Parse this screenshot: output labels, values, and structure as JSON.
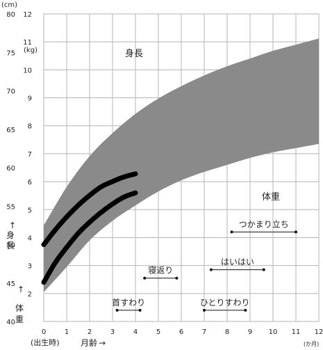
{
  "chart_data": {
    "type": "area",
    "x_axis": {
      "label": "月齢",
      "arrow": "→",
      "ticks": [
        0,
        1,
        2,
        3,
        4,
        5,
        6,
        7,
        8,
        9,
        10,
        11,
        12
      ],
      "range": [
        0,
        12
      ],
      "unit": "(か月)",
      "origin_note": "(出生時)"
    },
    "height_axis": {
      "unit": "(cm)",
      "range": [
        40,
        80
      ],
      "ticks": [
        40,
        45,
        50,
        55,
        60,
        65,
        70,
        75,
        80
      ],
      "label": [
        "身",
        "長"
      ],
      "arrow": "↑"
    },
    "weight_axis": {
      "unit": "(kg)",
      "range": [
        1,
        12
      ],
      "ticks": [
        2,
        3,
        4,
        5,
        6,
        7,
        8,
        9,
        10,
        11,
        12
      ],
      "label": [
        "体",
        "重"
      ],
      "arrow": "↑"
    },
    "grid": true,
    "bands": [
      {
        "name": "身長",
        "axis": "height",
        "x": [
          0,
          1,
          2,
          3,
          4,
          5,
          6,
          7,
          8,
          9,
          10,
          11,
          12
        ],
        "lower": [
          45.5,
          51.0,
          55.0,
          58.0,
          60.5,
          62.5,
          64.0,
          65.5,
          66.7,
          67.8,
          68.8,
          69.8,
          70.6
        ],
        "upper": [
          52.5,
          57.5,
          61.5,
          64.5,
          67.0,
          69.0,
          70.6,
          72.0,
          73.2,
          74.2,
          75.2,
          76.0,
          76.8
        ]
      },
      {
        "name": "体重",
        "axis": "weight",
        "x": [
          0,
          1,
          2,
          3,
          4,
          5,
          6,
          7,
          8,
          9,
          10,
          11,
          12
        ],
        "lower": [
          2.05,
          2.95,
          3.9,
          4.6,
          5.15,
          5.65,
          6.05,
          6.35,
          6.6,
          6.85,
          7.05,
          7.2,
          7.35
        ],
        "upper": [
          3.4,
          4.9,
          6.0,
          6.8,
          7.45,
          7.95,
          8.35,
          8.75,
          9.1,
          9.4,
          9.7,
          9.95,
          10.15
        ]
      }
    ],
    "series": [
      {
        "axis": "height",
        "x": [
          0,
          0.5,
          1,
          1.5,
          2,
          2.5,
          3,
          3.5,
          4
        ],
        "values": [
          50.0,
          51.9,
          53.6,
          55.1,
          56.4,
          57.5,
          58.2,
          58.8,
          59.2
        ]
      },
      {
        "axis": "weight",
        "x": [
          0,
          0.5,
          1,
          1.5,
          2,
          2.5,
          3,
          3.5,
          4
        ],
        "values": [
          2.4,
          3.1,
          3.65,
          4.15,
          4.55,
          4.9,
          5.2,
          5.45,
          5.6
        ]
      }
    ],
    "milestones": [
      {
        "label": "首すわり",
        "start": 3.2,
        "end": 4.2,
        "level": 1.4
      },
      {
        "label": "寝返り",
        "start": 4.4,
        "end": 5.8,
        "level": 2.55
      },
      {
        "label": "ひとりすわり",
        "start": 7.0,
        "end": 8.8,
        "level": 1.4
      },
      {
        "label": "はいはい",
        "start": 7.3,
        "end": 9.6,
        "level": 2.85
      },
      {
        "label": "つかまり立ち",
        "start": 8.2,
        "end": 11.0,
        "level": 4.2
      }
    ]
  },
  "colors": {
    "band": "#8a8a8a",
    "series": "#000000",
    "grid": "#b5b5b5",
    "text": "#222222"
  }
}
